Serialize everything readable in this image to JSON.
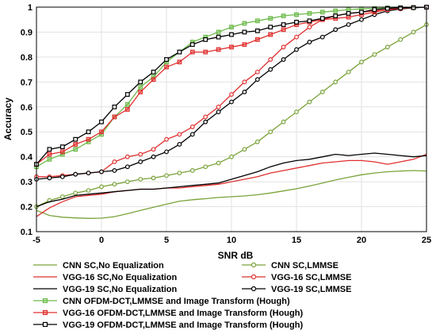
{
  "chart_data": {
    "type": "line",
    "xlabel": "SNR dB",
    "ylabel": "Accuracy",
    "xlim": [
      -5,
      25
    ],
    "ylim": [
      0.1,
      1.0
    ],
    "xticks": [
      -5,
      0,
      5,
      10,
      15,
      20,
      25
    ],
    "yticks": [
      0.1,
      0.2,
      0.3,
      0.4,
      0.5,
      0.6,
      0.7,
      0.8,
      0.9,
      1
    ],
    "grid": true,
    "legend": "bottom",
    "x": [
      -5,
      -4,
      -3,
      -2,
      -1,
      0,
      1,
      2,
      3,
      4,
      5,
      6,
      7,
      8,
      9,
      10,
      11,
      12,
      13,
      14,
      15,
      16,
      17,
      18,
      19,
      20,
      21,
      22,
      23,
      24,
      25
    ],
    "series": [
      {
        "name": "CNN SC,No Equalization",
        "color": "#7aa33a",
        "marker": "none",
        "values": [
          0.185,
          0.165,
          0.158,
          0.155,
          0.153,
          0.154,
          0.16,
          0.172,
          0.185,
          0.198,
          0.21,
          0.222,
          0.228,
          0.232,
          0.237,
          0.24,
          0.243,
          0.248,
          0.255,
          0.263,
          0.272,
          0.283,
          0.295,
          0.307,
          0.318,
          0.328,
          0.335,
          0.34,
          0.343,
          0.345,
          0.343
        ]
      },
      {
        "name": "CNN SC,LMMSE",
        "color": "#7aa33a",
        "marker": "circle",
        "values": [
          0.2,
          0.225,
          0.24,
          0.255,
          0.265,
          0.28,
          0.29,
          0.3,
          0.31,
          0.315,
          0.325,
          0.335,
          0.345,
          0.36,
          0.375,
          0.4,
          0.43,
          0.46,
          0.5,
          0.54,
          0.58,
          0.62,
          0.66,
          0.7,
          0.74,
          0.78,
          0.81,
          0.84,
          0.87,
          0.9,
          0.93
        ]
      },
      {
        "name": "VGG-16 SC,No Equalization",
        "color": "#e03030",
        "marker": "none",
        "values": [
          0.16,
          0.195,
          0.22,
          0.24,
          0.245,
          0.25,
          0.26,
          0.265,
          0.27,
          0.27,
          0.275,
          0.275,
          0.28,
          0.285,
          0.29,
          0.3,
          0.31,
          0.32,
          0.335,
          0.345,
          0.355,
          0.365,
          0.375,
          0.38,
          0.385,
          0.385,
          0.38,
          0.37,
          0.38,
          0.39,
          0.41
        ]
      },
      {
        "name": "VGG-16 SC,LMMSE",
        "color": "#e03030",
        "marker": "circle",
        "values": [
          0.32,
          0.32,
          0.325,
          0.33,
          0.335,
          0.34,
          0.38,
          0.4,
          0.41,
          0.43,
          0.47,
          0.49,
          0.52,
          0.56,
          0.6,
          0.65,
          0.7,
          0.74,
          0.79,
          0.84,
          0.88,
          0.92,
          0.95,
          0.965,
          0.975,
          0.98,
          0.985,
          0.99,
          0.995,
          0.998,
          1.0
        ]
      },
      {
        "name": "VGG-19 SC,No Equalization",
        "color": "#000000",
        "marker": "none",
        "values": [
          0.2,
          0.22,
          0.23,
          0.245,
          0.25,
          0.255,
          0.26,
          0.265,
          0.27,
          0.27,
          0.275,
          0.28,
          0.285,
          0.29,
          0.295,
          0.31,
          0.325,
          0.34,
          0.36,
          0.375,
          0.385,
          0.39,
          0.4,
          0.41,
          0.405,
          0.41,
          0.415,
          0.41,
          0.405,
          0.4,
          0.405
        ]
      },
      {
        "name": "VGG-19 SC,LMMSE",
        "color": "#000000",
        "marker": "circle",
        "values": [
          0.31,
          0.315,
          0.32,
          0.33,
          0.335,
          0.34,
          0.345,
          0.36,
          0.38,
          0.4,
          0.42,
          0.45,
          0.49,
          0.54,
          0.58,
          0.62,
          0.66,
          0.71,
          0.75,
          0.79,
          0.83,
          0.86,
          0.88,
          0.91,
          0.93,
          0.95,
          0.97,
          0.985,
          0.993,
          0.997,
          1.0
        ]
      },
      {
        "name": "CNN OFDM-DCT,LMMSE and Image Transform (Hough)",
        "color": "#6dbb4a",
        "marker": "square",
        "values": [
          0.36,
          0.39,
          0.41,
          0.43,
          0.46,
          0.49,
          0.56,
          0.61,
          0.68,
          0.72,
          0.78,
          0.82,
          0.86,
          0.88,
          0.9,
          0.92,
          0.935,
          0.945,
          0.955,
          0.965,
          0.97,
          0.975,
          0.98,
          0.985,
          0.99,
          0.993,
          0.995,
          0.997,
          0.998,
          0.999,
          1.0
        ]
      },
      {
        "name": "VGG-16 OFDM-DCT,LMMSE and Image Transform (Hough)",
        "color": "#e03030",
        "marker": "square",
        "values": [
          0.37,
          0.41,
          0.42,
          0.45,
          0.47,
          0.5,
          0.56,
          0.59,
          0.66,
          0.71,
          0.76,
          0.78,
          0.82,
          0.82,
          0.83,
          0.84,
          0.85,
          0.87,
          0.89,
          0.91,
          0.93,
          0.94,
          0.95,
          0.955,
          0.96,
          0.97,
          0.98,
          0.99,
          0.995,
          0.998,
          1.0
        ]
      },
      {
        "name": "VGG-19 OFDM-DCT,LMMSE and Image Transform (Hough)",
        "color": "#000000",
        "marker": "square",
        "values": [
          0.37,
          0.43,
          0.44,
          0.47,
          0.5,
          0.54,
          0.6,
          0.65,
          0.7,
          0.74,
          0.79,
          0.82,
          0.85,
          0.87,
          0.88,
          0.89,
          0.9,
          0.905,
          0.92,
          0.93,
          0.94,
          0.945,
          0.955,
          0.965,
          0.975,
          0.98,
          0.99,
          0.995,
          0.997,
          0.998,
          1.0
        ]
      }
    ]
  }
}
